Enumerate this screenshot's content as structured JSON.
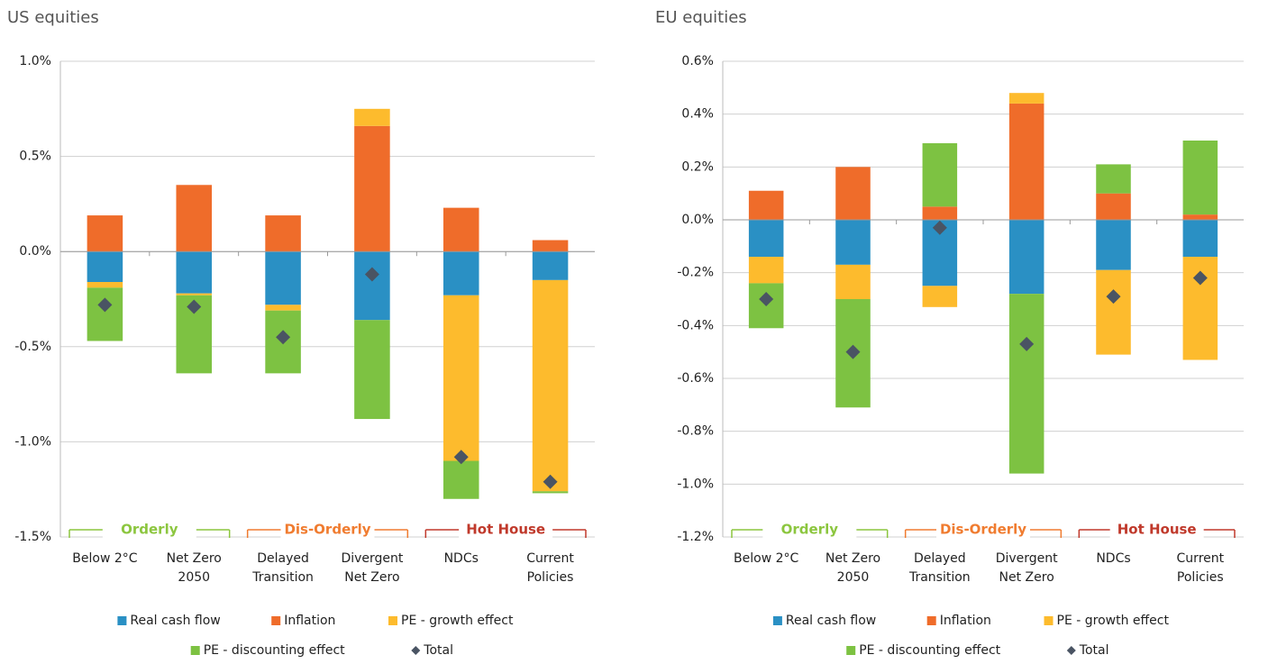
{
  "chart_data": [
    {
      "type": "stacked-bar",
      "title": "US equities",
      "groups": [
        {
          "label": "Orderly",
          "color": "#8cc63f",
          "categories": [
            [
              "Below 2°C"
            ],
            [
              "Net Zero",
              "2050"
            ]
          ]
        },
        {
          "label": "Dis-Orderly",
          "color": "#f07c30",
          "categories": [
            [
              "Delayed",
              "Transition"
            ],
            [
              "Divergent",
              "Net Zero"
            ]
          ]
        },
        {
          "label": "Hot House",
          "color": "#c0392b",
          "categories": [
            [
              "NDCs"
            ],
            [
              "Current",
              "Policies"
            ]
          ]
        }
      ],
      "series": [
        {
          "name": "Real cash flow",
          "color": "#2a90c4",
          "values": [
            -0.16,
            -0.22,
            -0.28,
            -0.36,
            -0.23,
            -0.15
          ]
        },
        {
          "name": "Inflation",
          "color": "#ef6c2a",
          "values": [
            0.19,
            0.35,
            0.19,
            0.66,
            0.23,
            0.06
          ]
        },
        {
          "name": "PE - growth effect",
          "color": "#fdbb2d",
          "values": [
            -0.03,
            -0.01,
            -0.03,
            0.09,
            -0.87,
            -1.11
          ]
        },
        {
          "name": "PE - discounting effect",
          "color": "#7dc242",
          "values": [
            -0.28,
            -0.41,
            -0.33,
            -0.52,
            -0.2,
            -0.01
          ]
        },
        {
          "name": "Total",
          "color": "#4a5463",
          "marker": "diamond",
          "values": [
            -0.28,
            -0.29,
            -0.45,
            -0.12,
            -1.08,
            -1.21
          ]
        }
      ],
      "ylim": [
        -1.5,
        1.0
      ],
      "yticks": [
        {
          "value": -1.5,
          "label": "-1.5%"
        },
        {
          "value": -1.0,
          "label": "-1.0%"
        },
        {
          "value": -0.5,
          "label": "-0.5%"
        },
        {
          "value": 0,
          "label": "0.0%"
        },
        {
          "value": 0.5,
          "label": "0.5%"
        },
        {
          "value": 1.0,
          "label": "1.0%"
        }
      ],
      "grid": true
    },
    {
      "type": "stacked-bar",
      "title": "EU equities",
      "groups": [
        {
          "label": "Orderly",
          "color": "#8cc63f",
          "categories": [
            [
              "Below 2°C"
            ],
            [
              "Net Zero",
              "2050"
            ]
          ]
        },
        {
          "label": "Dis-Orderly",
          "color": "#f07c30",
          "categories": [
            [
              "Delayed",
              "Transition"
            ],
            [
              "Divergent",
              "Net Zero"
            ]
          ]
        },
        {
          "label": "Hot House",
          "color": "#c0392b",
          "categories": [
            [
              "NDCs"
            ],
            [
              "Current",
              "Policies"
            ]
          ]
        }
      ],
      "series": [
        {
          "name": "Real cash flow",
          "color": "#2a90c4",
          "values": [
            -0.14,
            -0.17,
            -0.25,
            -0.28,
            -0.19,
            -0.14
          ]
        },
        {
          "name": "Inflation",
          "color": "#ef6c2a",
          "values": [
            0.11,
            0.2,
            0.05,
            0.44,
            0.1,
            0.02
          ]
        },
        {
          "name": "PE - growth effect",
          "color": "#fdbb2d",
          "values": [
            -0.1,
            -0.13,
            -0.08,
            0.04,
            -0.32,
            -0.39
          ]
        },
        {
          "name": "PE - discounting effect",
          "color": "#7dc242",
          "values": [
            -0.17,
            -0.41,
            0.24,
            -0.68,
            0.11,
            0.28
          ]
        },
        {
          "name": "Total",
          "color": "#4a5463",
          "marker": "diamond",
          "values": [
            -0.3,
            -0.5,
            -0.03,
            -0.47,
            -0.29,
            -0.22
          ]
        }
      ],
      "ylim": [
        -1.2,
        0.6
      ],
      "yticks": [
        {
          "value": -1.2,
          "label": "-1.2%"
        },
        {
          "value": -1.0,
          "label": "-1.0%"
        },
        {
          "value": -0.8,
          "label": "-0.8%"
        },
        {
          "value": -0.6,
          "label": "-0.6%"
        },
        {
          "value": -0.4,
          "label": "-0.4%"
        },
        {
          "value": -0.2,
          "label": "-0.2%"
        },
        {
          "value": 0,
          "label": "0.0%"
        },
        {
          "value": 0.2,
          "label": "0.2%"
        },
        {
          "value": 0.4,
          "label": "0.4%"
        },
        {
          "value": 0.6,
          "label": "0.6%"
        }
      ],
      "grid": true
    }
  ]
}
